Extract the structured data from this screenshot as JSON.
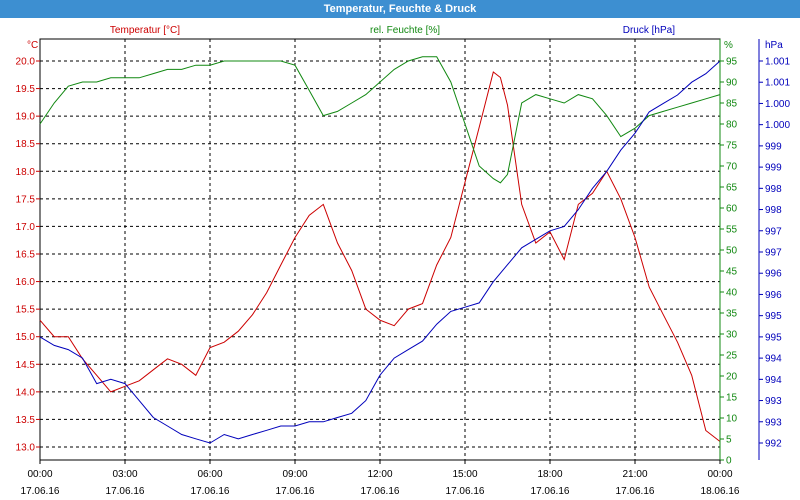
{
  "window": {
    "title": "Temperatur, Feuchte & Druck"
  },
  "colors": {
    "temperature": "#cc0000",
    "humidity": "#118811",
    "pressure": "#0000bb",
    "titlebar": "#3d8fd1",
    "grid": "#000000"
  },
  "chart_data": {
    "type": "line",
    "title": "Temperatur, Feuchte & Druck",
    "grid": true,
    "x_hours": [
      0,
      0.5,
      1,
      1.5,
      2,
      2.5,
      3,
      3.5,
      4,
      4.5,
      5,
      5.5,
      6,
      6.5,
      7,
      7.5,
      8,
      8.5,
      9,
      9.5,
      10,
      10.5,
      11,
      11.5,
      12,
      12.5,
      13,
      13.5,
      14,
      14.5,
      15,
      15.5,
      16,
      16.25,
      16.5,
      17,
      17.5,
      18,
      18.5,
      19,
      19.5,
      20,
      20.5,
      21,
      21.5,
      22,
      22.5,
      23,
      23.5,
      24
    ],
    "x_ticks": [
      {
        "time": "00:00",
        "date": "17.06.16"
      },
      {
        "time": "03:00",
        "date": "17.06.16"
      },
      {
        "time": "06:00",
        "date": "17.06.16"
      },
      {
        "time": "09:00",
        "date": "17.06.16"
      },
      {
        "time": "12:00",
        "date": "17.06.16"
      },
      {
        "time": "15:00",
        "date": "17.06.16"
      },
      {
        "time": "18:00",
        "date": "17.06.16"
      },
      {
        "time": "21:00",
        "date": "17.06.16"
      },
      {
        "time": "00:00",
        "date": "18.06.16"
      }
    ],
    "axes": {
      "temperature": {
        "label": "Temperatur [°C]",
        "unit": "°C",
        "ylim": [
          12.75,
          20.5
        ],
        "ticks": [
          "20.0",
          "19.5",
          "19.0",
          "18.5",
          "18.0",
          "17.5",
          "17.0",
          "16.5",
          "16.0",
          "15.5",
          "15.0",
          "14.5",
          "14.0",
          "13.5",
          "13.0"
        ]
      },
      "humidity": {
        "label": "rel. Feuchte [%]",
        "unit": "%",
        "ylim": [
          0,
          95
        ],
        "ticks": [
          "95",
          "90",
          "85",
          "80",
          "75",
          "70",
          "65",
          "60",
          "55",
          "50",
          "45",
          "40",
          "35",
          "30",
          "25",
          "20",
          "15",
          "10",
          "5",
          "0"
        ]
      },
      "pressure": {
        "label": "Druck [hPa]",
        "unit": "hPa",
        "ylim": [
          991.5,
          1001.7
        ],
        "ticks": [
          "1.001",
          "1.001",
          "1.000",
          "1.000",
          "999",
          "999",
          "998",
          "998",
          "997",
          "997",
          "996",
          "996",
          "995",
          "995",
          "994",
          "994",
          "993",
          "993",
          "992"
        ]
      }
    },
    "series": [
      {
        "name": "Temperatur [°C]",
        "axis": "temperature",
        "values": [
          15.3,
          15.0,
          15.0,
          14.6,
          14.3,
          14.0,
          14.1,
          14.2,
          14.4,
          14.6,
          14.5,
          14.3,
          14.8,
          14.9,
          15.1,
          15.4,
          15.8,
          16.3,
          16.8,
          17.2,
          17.4,
          16.7,
          16.2,
          15.5,
          15.3,
          15.2,
          15.5,
          15.6,
          16.3,
          16.8,
          17.8,
          18.8,
          19.8,
          19.7,
          19.2,
          17.4,
          16.7,
          16.9,
          16.4,
          17.4,
          17.6,
          18.0,
          17.5,
          16.8,
          15.9,
          15.4,
          14.9,
          14.3,
          13.3,
          13.1
        ]
      },
      {
        "name": "rel. Feuchte [%]",
        "axis": "humidity",
        "values": [
          80,
          85,
          89,
          90,
          90,
          91,
          91,
          91,
          92,
          93,
          93,
          94,
          94,
          95,
          95,
          95,
          95,
          95,
          94,
          88,
          82,
          83,
          85,
          87,
          90,
          93,
          95,
          96,
          96,
          90,
          80,
          70,
          67,
          66,
          68,
          85,
          87,
          86,
          85,
          87,
          86,
          82,
          77,
          79,
          82,
          83,
          84,
          85,
          86,
          87
        ]
      },
      {
        "name": "Druck [hPa]",
        "axis": "pressure",
        "values": [
          994.5,
          994.3,
          994.2,
          994.0,
          993.4,
          993.5,
          993.4,
          993.0,
          992.6,
          992.4,
          992.2,
          992.1,
          992.0,
          992.2,
          992.1,
          992.2,
          992.3,
          992.4,
          992.4,
          992.5,
          992.5,
          992.6,
          992.7,
          993.0,
          993.6,
          994.0,
          994.2,
          994.4,
          994.8,
          995.1,
          995.2,
          995.3,
          995.8,
          996.0,
          996.2,
          996.6,
          996.8,
          997.0,
          997.1,
          997.5,
          998.0,
          998.4,
          998.9,
          999.3,
          999.8,
          1000.0,
          1000.2,
          1000.5,
          1000.7,
          1001.0
        ]
      }
    ]
  }
}
